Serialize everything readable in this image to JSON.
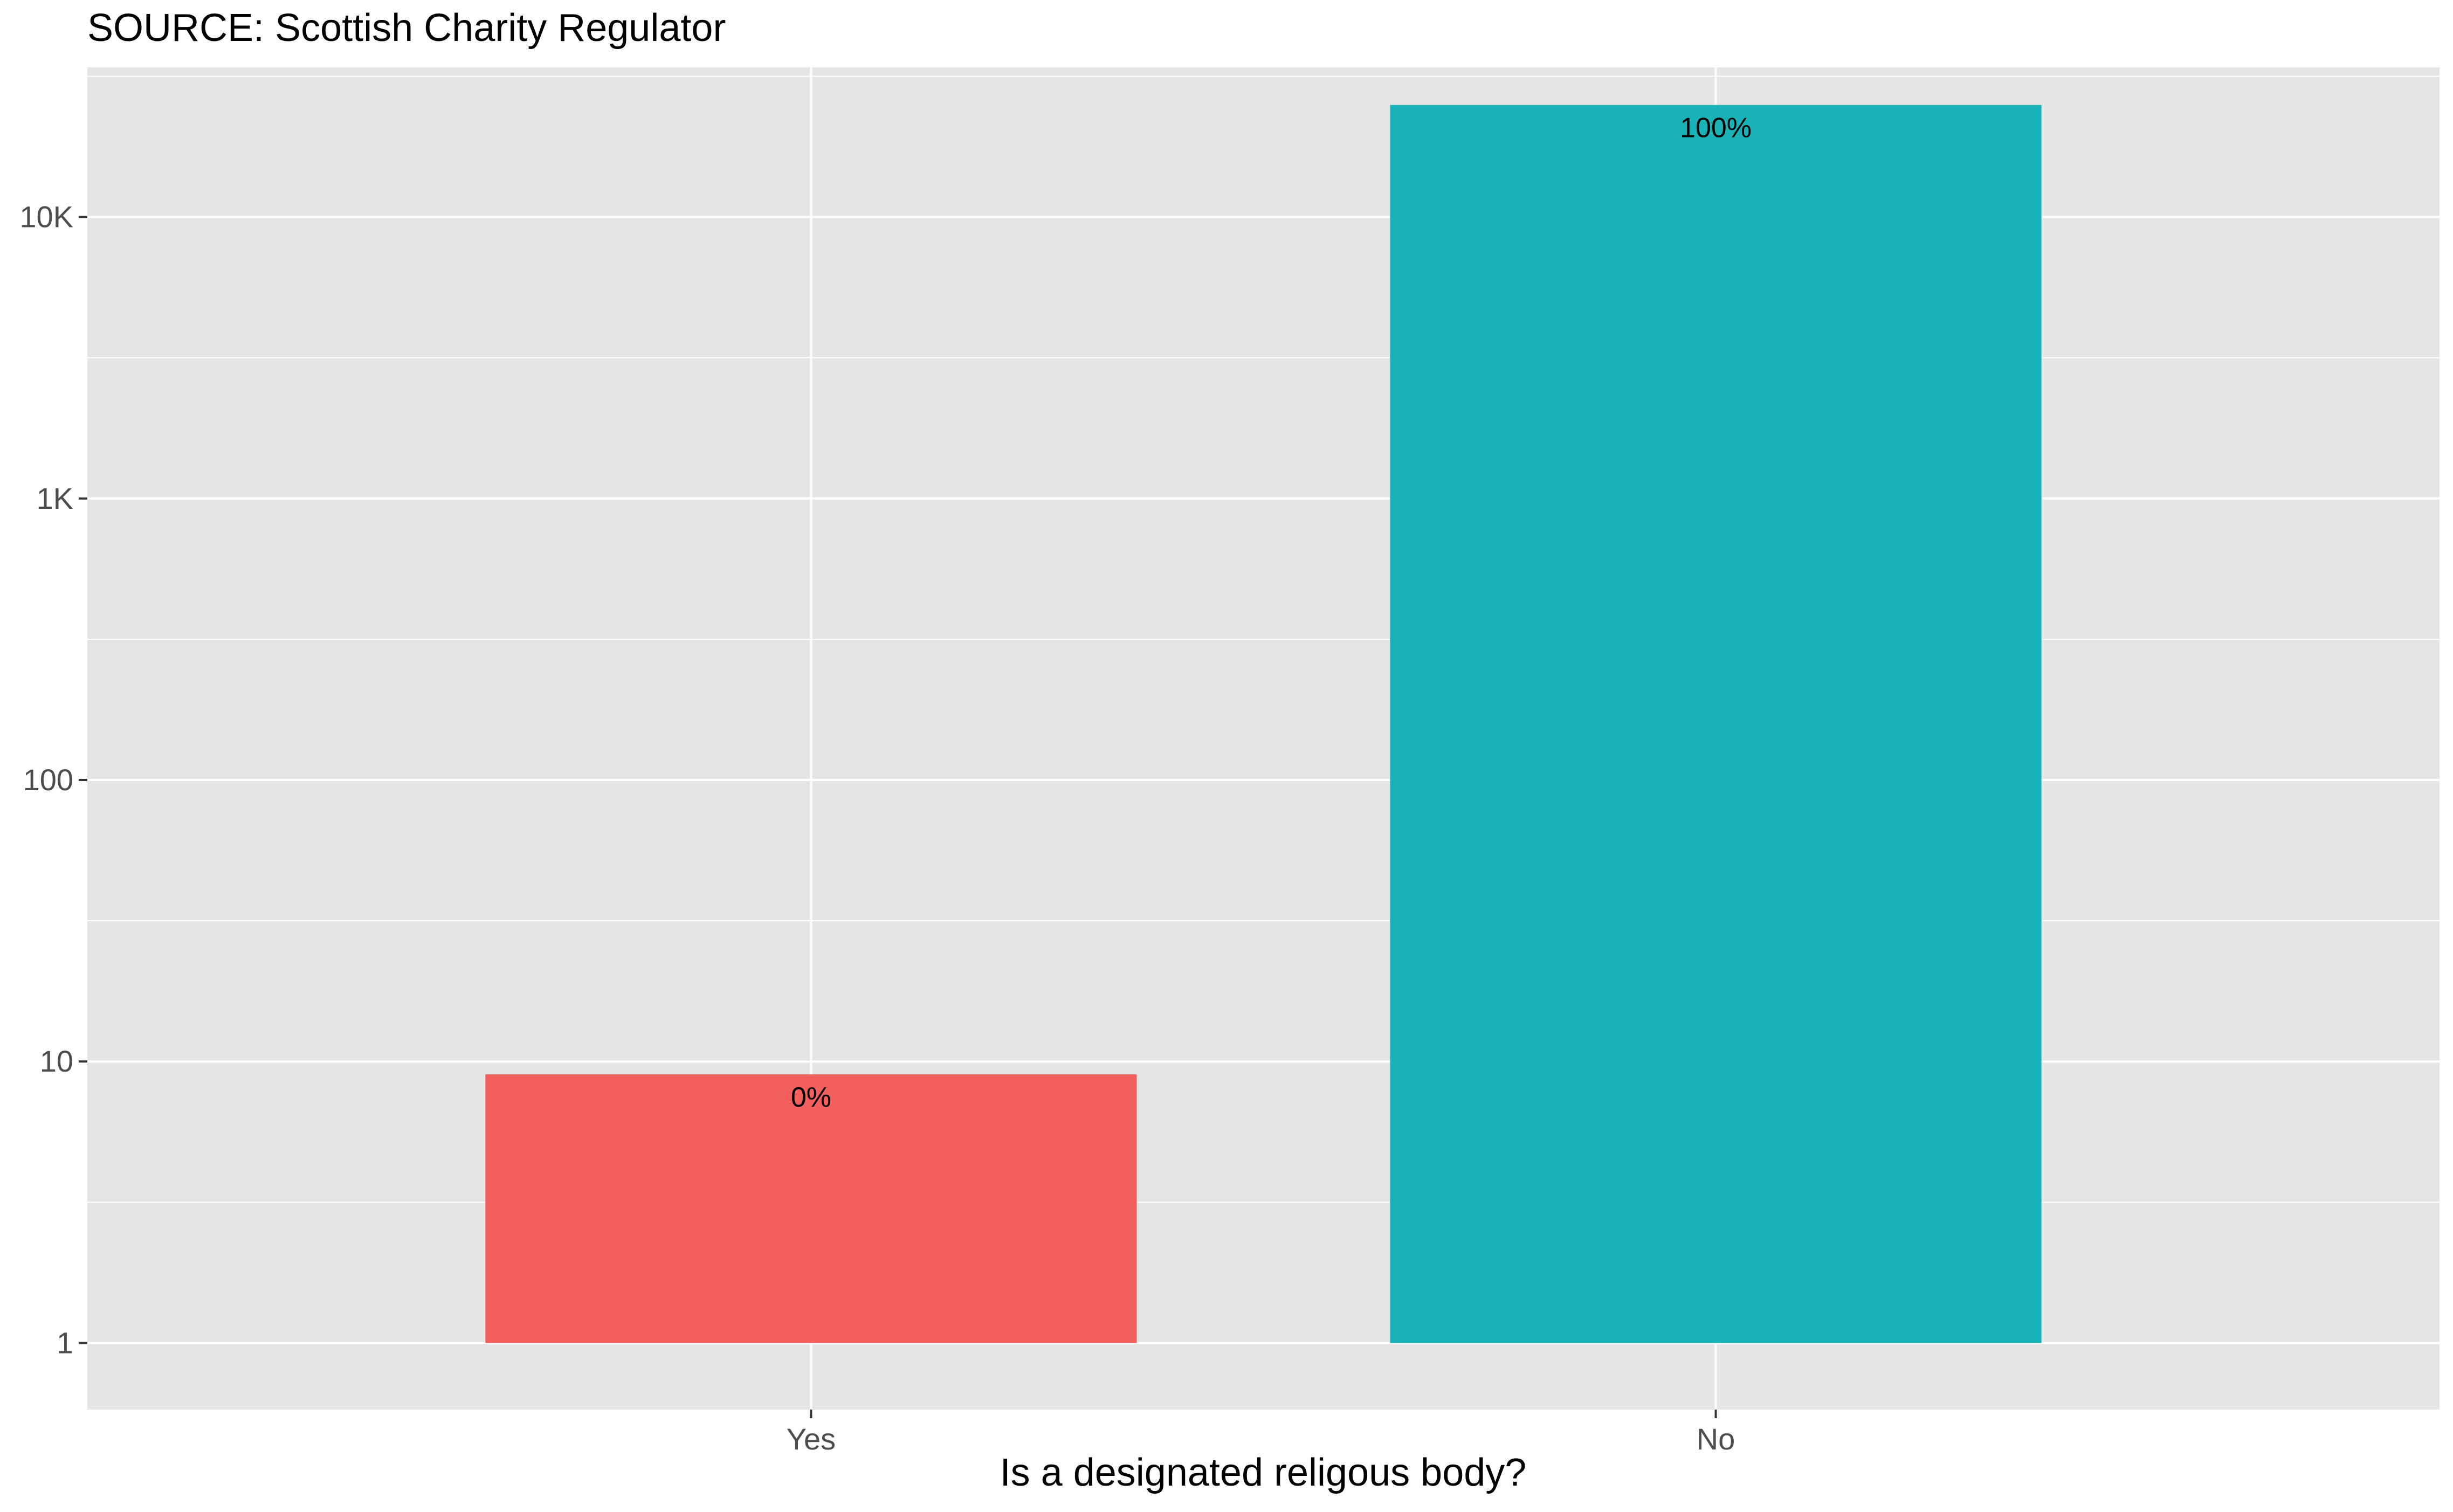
{
  "chart_data": {
    "type": "bar",
    "title": "SOURCE: Scottish Charity Regulator",
    "xlabel": "Is a designated religous body?",
    "ylabel": "",
    "y_scale": "log10",
    "ylim": [
      0.58,
      34000
    ],
    "y_ticks": [
      1,
      10,
      100,
      1000,
      10000
    ],
    "y_tick_labels": [
      "1",
      "10",
      "100",
      "1K",
      "10K"
    ],
    "categories": [
      "Yes",
      "No"
    ],
    "values": [
      9,
      25000
    ],
    "data_labels": [
      "0%",
      "100%"
    ],
    "colors": [
      "#F25F5C",
      "#19B2B8"
    ],
    "panel_background": "#E5E5E5",
    "grid": true,
    "legend": "none"
  }
}
